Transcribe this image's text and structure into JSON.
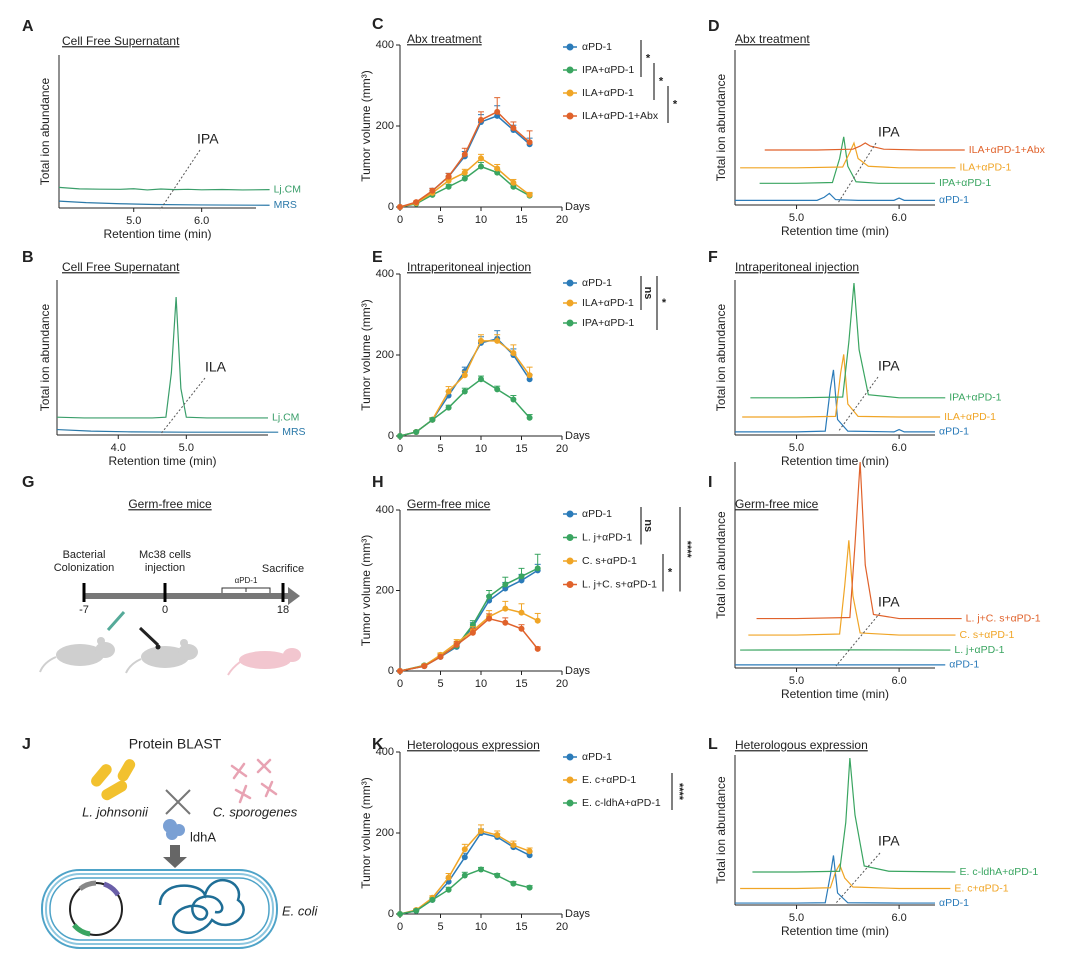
{
  "chart_data": [
    {
      "type": "line",
      "label": "A",
      "title": "Cell Free Supernatant",
      "x_label": "Retention time (min)",
      "y_label": "Total ion abundance",
      "xlim": [
        3.9,
        6.8
      ],
      "ylim": [
        0,
        100
      ],
      "xticks": [
        {
          "value": 5,
          "label": "5.0"
        },
        {
          "value": 6,
          "label": "6.0"
        }
      ],
      "annotation": "IPA",
      "series": [
        {
          "name": "Lj.CM",
          "color": "#3a9e6a",
          "x": [
            3.9,
            4.2,
            4.5,
            4.8,
            5.0,
            5.2,
            5.4,
            5.6,
            5.8,
            6.0,
            6.3,
            6.6,
            7.0
          ],
          "values": [
            13.5,
            12.5,
            12.3,
            12.2,
            12.6,
            11.8,
            12.4,
            12,
            12.2,
            11.9,
            12.1,
            11.8,
            12
          ]
        },
        {
          "name": "MRS",
          "color": "#2a78a8",
          "x": [
            3.9,
            4.3,
            4.8,
            5.3,
            6.0,
            7.0
          ],
          "values": [
            4.5,
            3.5,
            2.8,
            2.3,
            2,
            1.8
          ]
        }
      ]
    },
    {
      "type": "line",
      "label": "B",
      "title": "Cell Free Supernatant",
      "x_label": "Retention time (min)",
      "y_label": "Total ion abundance",
      "xlim": [
        3.1,
        6.2
      ],
      "ylim": [
        0,
        100
      ],
      "xticks": [
        {
          "value": 4,
          "label": "4.0"
        },
        {
          "value": 5,
          "label": "5.0"
        }
      ],
      "annotation": "ILA",
      "series": [
        {
          "name": "Lj.CM",
          "color": "#3a9e6a",
          "x": [
            3.1,
            3.5,
            4.0,
            4.5,
            4.7,
            4.78,
            4.85,
            4.92,
            5.0,
            5.3,
            5.7,
            6.2
          ],
          "values": [
            11.5,
            11,
            11,
            11,
            11.5,
            40,
            89,
            30,
            11.5,
            11,
            11,
            11
          ]
        },
        {
          "name": "MRS",
          "color": "#2a78a8",
          "x": [
            3.1,
            3.6,
            4.2,
            5.0,
            6.35
          ],
          "values": [
            3.5,
            2.5,
            2,
            1.8,
            1.8
          ]
        }
      ]
    },
    {
      "type": "line",
      "label": "C",
      "title": "Abx treatment",
      "x_label": "Days",
      "y_label": "Tumor volume (mm³)",
      "x": [
        0,
        2,
        4,
        6,
        8,
        10,
        12,
        14,
        16
      ],
      "xlim": [
        0,
        20
      ],
      "ylim": [
        0,
        400
      ],
      "xticks": [
        0,
        5,
        10,
        15,
        20
      ],
      "yticks": [
        0,
        200,
        400
      ],
      "series": [
        {
          "name": "αPD-1",
          "color": "#2b7bb9",
          "values": [
            0,
            10,
            40,
            75,
            125,
            210,
            225,
            190,
            155
          ],
          "errors": [
            0,
            3,
            6,
            8,
            12,
            18,
            25,
            12,
            15
          ]
        },
        {
          "name": "IPA+αPD-1",
          "color": "#3aa561",
          "values": [
            0,
            8,
            30,
            50,
            70,
            100,
            85,
            50,
            28
          ],
          "errors": [
            0,
            2,
            5,
            6,
            8,
            10,
            8,
            6,
            5
          ]
        },
        {
          "name": "ILA+αPD-1",
          "color": "#f0a526",
          "values": [
            0,
            10,
            35,
            65,
            85,
            120,
            95,
            60,
            30
          ],
          "errors": [
            0,
            3,
            5,
            8,
            8,
            10,
            10,
            8,
            6
          ]
        },
        {
          "name": "ILA+αPD-1+Abx",
          "color": "#e0622b",
          "values": [
            0,
            12,
            40,
            75,
            130,
            215,
            235,
            195,
            160
          ],
          "errors": [
            0,
            3,
            6,
            8,
            15,
            20,
            35,
            15,
            28
          ]
        }
      ],
      "annotations": [
        "*",
        "*",
        "*"
      ]
    },
    {
      "type": "line",
      "label": "D",
      "title": "Abx treatment",
      "x_label": "Retention time (min)",
      "y_label": "Total ion abundance",
      "xlim": [
        4.4,
        6.35
      ],
      "ylim": [
        0,
        100
      ],
      "xticks": [
        {
          "value": 5,
          "label": "5.0"
        },
        {
          "value": 6,
          "label": "6.0"
        }
      ],
      "annotation": "IPA",
      "series": [
        {
          "name": "αPD-1",
          "color": "#2b7bb9",
          "x": [
            4.4,
            4.8,
            5.2,
            5.27,
            5.32,
            5.38,
            5.6,
            5.95,
            6.0,
            6.05,
            6.35
          ],
          "values": [
            3,
            3,
            3,
            5,
            7.5,
            3.5,
            3,
            3,
            4.5,
            3,
            3
          ]
        },
        {
          "name": "IPA+αPD-1",
          "color": "#3aa561",
          "x": [
            4.64,
            5.0,
            5.35,
            5.42,
            5.46,
            5.5,
            5.58,
            5.8,
            6.35
          ],
          "values": [
            14,
            14,
            14.5,
            30,
            44,
            25,
            15,
            14,
            14
          ]
        },
        {
          "name": "ILA+αPD-1",
          "color": "#f0a526",
          "x": [
            4.45,
            5.0,
            5.45,
            5.52,
            5.56,
            5.6,
            5.7,
            6.0,
            6.55
          ],
          "values": [
            24,
            24,
            24.5,
            34,
            40,
            30,
            25,
            24,
            24
          ]
        },
        {
          "name": "ILA+αPD-1+Abx",
          "color": "#e0622b",
          "x": [
            4.69,
            5.2,
            5.55,
            5.62,
            5.67,
            5.72,
            5.85,
            6.2,
            6.64
          ],
          "values": [
            35.5,
            35.5,
            36,
            38,
            40,
            38,
            36,
            35.5,
            35.5
          ]
        }
      ]
    },
    {
      "type": "line",
      "label": "E",
      "title": "Intraperitoneal injection",
      "x_label": "Days",
      "y_label": "Tumor volume (mm³)",
      "x": [
        0,
        2,
        4,
        6,
        8,
        10,
        12,
        14,
        16
      ],
      "xlim": [
        0,
        20
      ],
      "ylim": [
        0,
        400
      ],
      "xticks": [
        0,
        5,
        10,
        15,
        20
      ],
      "yticks": [
        0,
        200,
        400
      ],
      "series": [
        {
          "name": "αPD-1",
          "color": "#2b7bb9",
          "values": [
            0,
            10,
            40,
            100,
            160,
            230,
            240,
            200,
            140
          ],
          "errors": [
            0,
            3,
            5,
            10,
            10,
            15,
            20,
            15,
            12
          ]
        },
        {
          "name": "ILA+αPD-1",
          "color": "#f0a526",
          "values": [
            0,
            10,
            40,
            110,
            150,
            235,
            235,
            205,
            150
          ],
          "errors": [
            0,
            3,
            5,
            12,
            10,
            15,
            15,
            20,
            20
          ]
        },
        {
          "name": "IPA+αPD-1",
          "color": "#3aa561",
          "values": [
            0,
            10,
            40,
            70,
            110,
            140,
            115,
            90,
            45
          ],
          "errors": [
            0,
            2,
            4,
            6,
            8,
            8,
            8,
            10,
            8
          ]
        }
      ],
      "annotations": [
        "ns",
        "*"
      ]
    },
    {
      "type": "line",
      "label": "F",
      "title": "Intraperitoneal injection",
      "x_label": "Retention time (min)",
      "y_label": "Total ion abundance",
      "xlim": [
        4.4,
        6.35
      ],
      "ylim": [
        0,
        100
      ],
      "xticks": [
        {
          "value": 5,
          "label": "5.0"
        },
        {
          "value": 6,
          "label": "6.0"
        }
      ],
      "annotation": "IPA",
      "series": [
        {
          "name": "αPD-1",
          "color": "#2b7bb9",
          "x": [
            4.4,
            5.0,
            5.28,
            5.33,
            5.36,
            5.4,
            5.5,
            5.95,
            6.0,
            6.05,
            6.35
          ],
          "values": [
            2,
            2,
            2.5,
            30,
            42,
            10,
            2.5,
            2,
            3.5,
            2,
            2
          ]
        },
        {
          "name": "ILA+αPD-1",
          "color": "#f0a526",
          "x": [
            4.47,
            5.0,
            5.38,
            5.43,
            5.46,
            5.5,
            5.6,
            6.0,
            6.4
          ],
          "values": [
            11.6,
            11.6,
            12,
            40,
            52,
            20,
            12,
            11.6,
            11.6
          ]
        },
        {
          "name": "IPA+αPD-1",
          "color": "#3aa561",
          "x": [
            4.55,
            5.0,
            5.45,
            5.51,
            5.56,
            5.61,
            5.7,
            6.0,
            6.45
          ],
          "values": [
            24,
            24,
            24.5,
            60,
            98,
            55,
            26,
            24,
            24
          ]
        }
      ]
    },
    {
      "type": "line",
      "label": "H",
      "title": "Germ-free mice",
      "x_label": "Days",
      "y_label": "Tumor volume (mm³)",
      "x": [
        0,
        3,
        5,
        7,
        9,
        11,
        13,
        15,
        17
      ],
      "xlim": [
        0,
        20
      ],
      "ylim": [
        0,
        400
      ],
      "xticks": [
        0,
        5,
        10,
        15,
        20
      ],
      "yticks": [
        0,
        200,
        400
      ],
      "series": [
        {
          "name": "αPD-1",
          "color": "#2b7bb9",
          "values": [
            0,
            12,
            35,
            60,
            110,
            175,
            205,
            225,
            250
          ],
          "errors": [
            0,
            3,
            5,
            8,
            10,
            12,
            15,
            15,
            15
          ]
        },
        {
          "name": "L. j+αPD-1",
          "color": "#3aa561",
          "values": [
            0,
            14,
            38,
            62,
            115,
            185,
            215,
            235,
            255
          ],
          "errors": [
            0,
            3,
            5,
            8,
            10,
            15,
            18,
            20,
            35
          ]
        },
        {
          "name": "C. s+αPD-1",
          "color": "#f0a526",
          "values": [
            0,
            13,
            40,
            70,
            100,
            135,
            155,
            145,
            125
          ],
          "errors": [
            0,
            3,
            5,
            8,
            10,
            15,
            18,
            22,
            18
          ]
        },
        {
          "name": "L. j+C. s+αPD-1",
          "color": "#e0622b",
          "values": [
            0,
            12,
            35,
            65,
            95,
            130,
            120,
            105,
            55
          ],
          "errors": [
            0,
            3,
            5,
            8,
            10,
            12,
            12,
            10,
            5
          ]
        }
      ],
      "annotations": [
        "ns",
        "*",
        "****"
      ]
    },
    {
      "type": "line",
      "label": "I",
      "title": "Germ-free mice",
      "x_label": "Retention time (min)",
      "y_label": "Total ion abundance",
      "xlim": [
        4.4,
        6.35
      ],
      "ylim": [
        0,
        100
      ],
      "xticks": [
        {
          "value": 5,
          "label": "5.0"
        },
        {
          "value": 6,
          "label": "6.0"
        }
      ],
      "annotation": "IPA",
      "series": [
        {
          "name": "αPD-1",
          "color": "#2b7bb9",
          "x": [
            4.4,
            5.0,
            6.0,
            6.45
          ],
          "values": [
            1.5,
            1.5,
            1.5,
            1.5
          ]
        },
        {
          "name": "L. j+αPD-1",
          "color": "#3aa561",
          "x": [
            4.45,
            5.5,
            6.5
          ],
          "values": [
            8.7,
            8.8,
            8.7
          ]
        },
        {
          "name": "C. s+αPD-1",
          "color": "#f0a526",
          "x": [
            4.53,
            5.0,
            5.42,
            5.47,
            5.51,
            5.55,
            5.62,
            6.0,
            6.55
          ],
          "values": [
            16,
            16,
            16.5,
            40,
            62,
            35,
            17,
            16,
            16
          ]
        },
        {
          "name": "L. j+C. s+αPD-1",
          "color": "#e0622b",
          "x": [
            4.61,
            5.0,
            5.52,
            5.57,
            5.62,
            5.67,
            5.75,
            6.0,
            6.61
          ],
          "values": [
            24,
            24,
            24.5,
            60,
            100,
            50,
            26,
            24,
            24
          ]
        }
      ]
    },
    {
      "type": "line",
      "label": "K",
      "title": "Heterologous expression",
      "x_label": "Days",
      "y_label": "Tumor volume (mm³)",
      "x": [
        0,
        2,
        4,
        6,
        8,
        10,
        12,
        14,
        16
      ],
      "xlim": [
        0,
        20
      ],
      "ylim": [
        0,
        400
      ],
      "xticks": [
        0,
        5,
        10,
        15,
        20
      ],
      "yticks": [
        0,
        200,
        400
      ],
      "series": [
        {
          "name": "αPD-1",
          "color": "#2b7bb9",
          "values": [
            0,
            8,
            35,
            80,
            140,
            200,
            190,
            165,
            145
          ],
          "errors": [
            0,
            3,
            5,
            8,
            10,
            10,
            8,
            8,
            8
          ]
        },
        {
          "name": "E. c+αPD-1",
          "color": "#f0a526",
          "values": [
            0,
            10,
            40,
            90,
            160,
            205,
            195,
            170,
            155
          ],
          "errors": [
            0,
            3,
            5,
            10,
            12,
            15,
            10,
            10,
            8
          ]
        },
        {
          "name": "E. c-ldhA+αPD-1",
          "color": "#3aa561",
          "values": [
            0,
            8,
            35,
            60,
            95,
            110,
            95,
            75,
            65
          ],
          "errors": [
            0,
            2,
            4,
            6,
            8,
            5,
            5,
            5,
            5
          ]
        }
      ],
      "annotations": [
        "****"
      ]
    },
    {
      "type": "line",
      "label": "L",
      "title": "Heterologous expression",
      "x_label": "Retention time (min)",
      "y_label": "Total ion abundance",
      "xlim": [
        4.4,
        6.35
      ],
      "ylim": [
        0,
        100
      ],
      "xticks": [
        {
          "value": 5,
          "label": "5.0"
        },
        {
          "value": 6,
          "label": "6.0"
        }
      ],
      "annotation": "IPA",
      "series": [
        {
          "name": "αPD-1",
          "color": "#2b7bb9",
          "x": [
            4.4,
            5.0,
            5.28,
            5.33,
            5.36,
            5.4,
            5.5,
            6.0,
            6.35
          ],
          "values": [
            1.3,
            1.3,
            1.5,
            20,
            33,
            8,
            1.5,
            1.3,
            1.3
          ]
        },
        {
          "name": "E. c+αPD-1",
          "color": "#f0a526",
          "x": [
            4.45,
            5.0,
            5.33,
            5.38,
            5.42,
            5.47,
            5.55,
            6.0,
            6.5
          ],
          "values": [
            11,
            11,
            11.5,
            22,
            27,
            18,
            12,
            11,
            11
          ]
        },
        {
          "name": "E. c-ldhA+αPD-1",
          "color": "#3aa561",
          "x": [
            4.57,
            5.0,
            5.42,
            5.48,
            5.52,
            5.57,
            5.66,
            5.9,
            6.55
          ],
          "values": [
            22,
            22,
            22.5,
            55,
            98,
            60,
            26,
            22.5,
            22
          ]
        }
      ]
    }
  ],
  "diagram_g": {
    "label": "G",
    "title": "Germ-free mice",
    "events": [
      {
        "lines": [
          "Bacterial",
          "Colonization"
        ],
        "day": "-7"
      },
      {
        "lines": [
          "Mc38 cells",
          "injection"
        ],
        "day": "0"
      },
      {
        "lines": [
          "Sacrifice"
        ],
        "day": "18"
      }
    ],
    "treatment": "αPD-1"
  },
  "diagram_j": {
    "label": "J",
    "title": "Protein BLAST",
    "organisms": [
      "L. johnsonii",
      "C. sporogenes"
    ],
    "gene": "ldhA",
    "host": "E. coli"
  }
}
